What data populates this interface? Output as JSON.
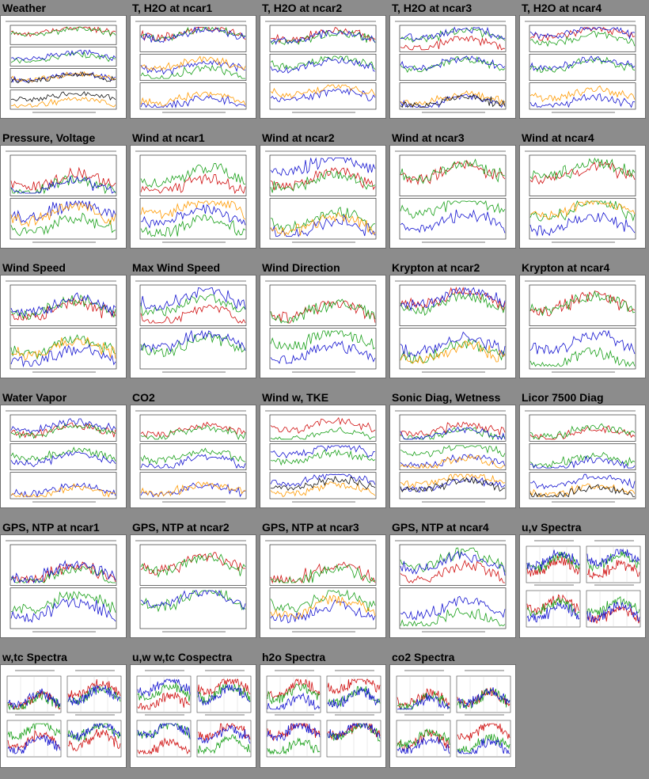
{
  "page": {
    "background": "#8c8c8c"
  },
  "rows": [
    [
      {
        "title": "Weather",
        "kind": "strips4"
      },
      {
        "title": "T, H2O at ncar1",
        "kind": "strips3"
      },
      {
        "title": "T, H2O at ncar2",
        "kind": "strips3"
      },
      {
        "title": "T, H2O at ncar3",
        "kind": "strips3"
      },
      {
        "title": "T, H2O at ncar4",
        "kind": "strips3"
      }
    ],
    [
      {
        "title": "Pressure, Voltage",
        "kind": "strips2"
      },
      {
        "title": "Wind at ncar1",
        "kind": "strips2"
      },
      {
        "title": "Wind at ncar2",
        "kind": "strips2"
      },
      {
        "title": "Wind at ncar3",
        "kind": "strips2"
      },
      {
        "title": "Wind at ncar4",
        "kind": "strips2"
      }
    ],
    [
      {
        "title": "Wind Speed",
        "kind": "strips2"
      },
      {
        "title": "Max Wind Speed",
        "kind": "strips2"
      },
      {
        "title": "Wind Direction",
        "kind": "strips2"
      },
      {
        "title": "Krypton at ncar2",
        "kind": "strips2"
      },
      {
        "title": "Krypton at ncar4",
        "kind": "strips2"
      }
    ],
    [
      {
        "title": "Water Vapor",
        "kind": "strips3"
      },
      {
        "title": "CO2",
        "kind": "strips3"
      },
      {
        "title": "Wind w, TKE",
        "kind": "strips3"
      },
      {
        "title": "Sonic Diag, Wetness",
        "kind": "strips3"
      },
      {
        "title": "Licor 7500 Diag",
        "kind": "strips3"
      }
    ],
    [
      {
        "title": "GPS, NTP at ncar1",
        "kind": "strips2"
      },
      {
        "title": "GPS, NTP at ncar2",
        "kind": "strips2"
      },
      {
        "title": "GPS, NTP at ncar3",
        "kind": "strips2"
      },
      {
        "title": "GPS, NTP at ncar4",
        "kind": "strips2"
      },
      {
        "title": "u,v Spectra",
        "kind": "spectra"
      }
    ],
    [
      {
        "title": "w,tc Spectra",
        "kind": "spectra"
      },
      {
        "title": "u,w w,tc Cospectra",
        "kind": "spectra"
      },
      {
        "title": "h2o Spectra",
        "kind": "spectra"
      },
      {
        "title": "co2 Spectra",
        "kind": "spectra"
      }
    ]
  ],
  "trace_colors": [
    "#d01010",
    "#1aa01a",
    "#1414d0",
    "#ff9a00",
    "#111111"
  ]
}
